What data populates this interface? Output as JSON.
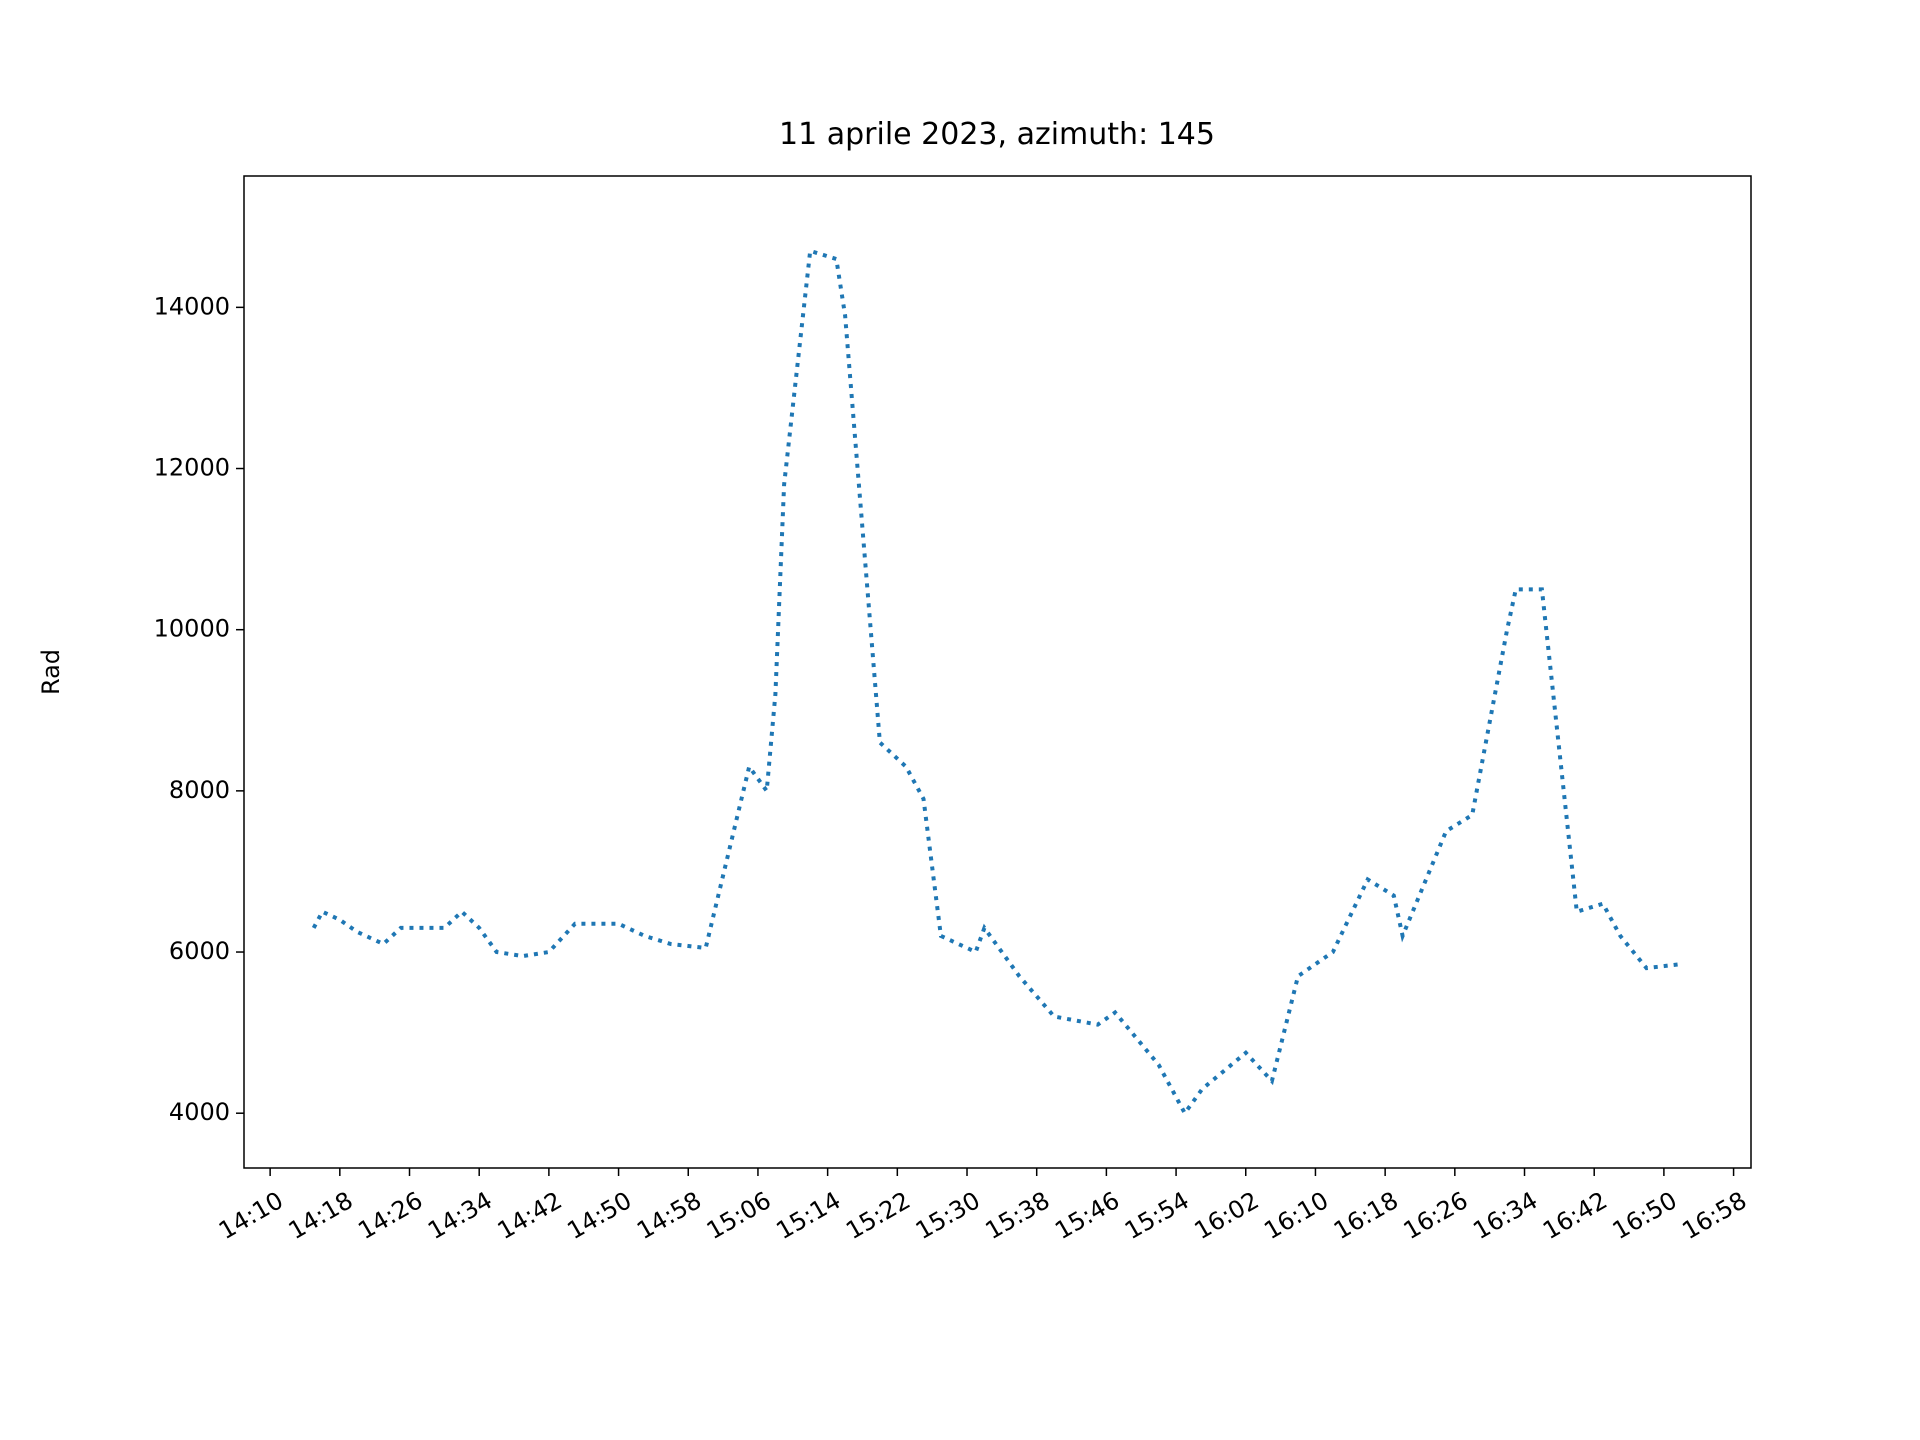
{
  "chart_data": {
    "type": "line",
    "title": "11 aprile 2023, azimuth: 145",
    "ylabel": "Rad",
    "x": [
      "14:15",
      "14:16",
      "14:18",
      "14:20",
      "14:23",
      "14:25",
      "14:30",
      "14:32",
      "14:34",
      "14:36",
      "14:39",
      "14:42",
      "14:45",
      "14:50",
      "14:53",
      "14:56",
      "15:00",
      "15:05",
      "15:07",
      "15:08",
      "15:09",
      "15:12",
      "15:15",
      "15:16",
      "15:20",
      "15:23",
      "15:25",
      "15:27",
      "15:31",
      "15:32",
      "15:36",
      "15:40",
      "15:45",
      "15:47",
      "15:52",
      "15:55",
      "15:57",
      "16:02",
      "16:05",
      "16:08",
      "16:12",
      "16:16",
      "16:19",
      "16:20",
      "16:25",
      "16:28",
      "16:32",
      "16:33",
      "16:36",
      "16:40",
      "16:43",
      "16:45",
      "16:48",
      "16:52"
    ],
    "values": [
      6300,
      6500,
      6400,
      6250,
      6100,
      6300,
      6300,
      6500,
      6300,
      6000,
      5950,
      6000,
      6350,
      6350,
      6200,
      6100,
      6050,
      8300,
      8000,
      9200,
      11800,
      14700,
      14600,
      13900,
      8600,
      8300,
      7900,
      6200,
      6000,
      6300,
      5700,
      5200,
      5100,
      5250,
      4600,
      4000,
      4300,
      4750,
      4400,
      5700,
      6000,
      6900,
      6700,
      6200,
      7500,
      7700,
      10000,
      10500,
      10500,
      6500,
      6600,
      6200,
      5800,
      5850
    ],
    "color": "#1f77b4",
    "line_style": "dotted",
    "xlim": [
      "14:07",
      "17:00"
    ],
    "xticks": [
      "14:10",
      "14:18",
      "14:26",
      "14:34",
      "14:42",
      "14:50",
      "14:58",
      "15:06",
      "15:14",
      "15:22",
      "15:30",
      "15:38",
      "15:46",
      "15:54",
      "16:02",
      "16:10",
      "16:18",
      "16:26",
      "16:34",
      "16:42",
      "16:50",
      "16:58"
    ],
    "ylim": [
      3320,
      15630
    ],
    "yticks": [
      4000,
      6000,
      8000,
      10000,
      12000,
      14000
    ]
  }
}
